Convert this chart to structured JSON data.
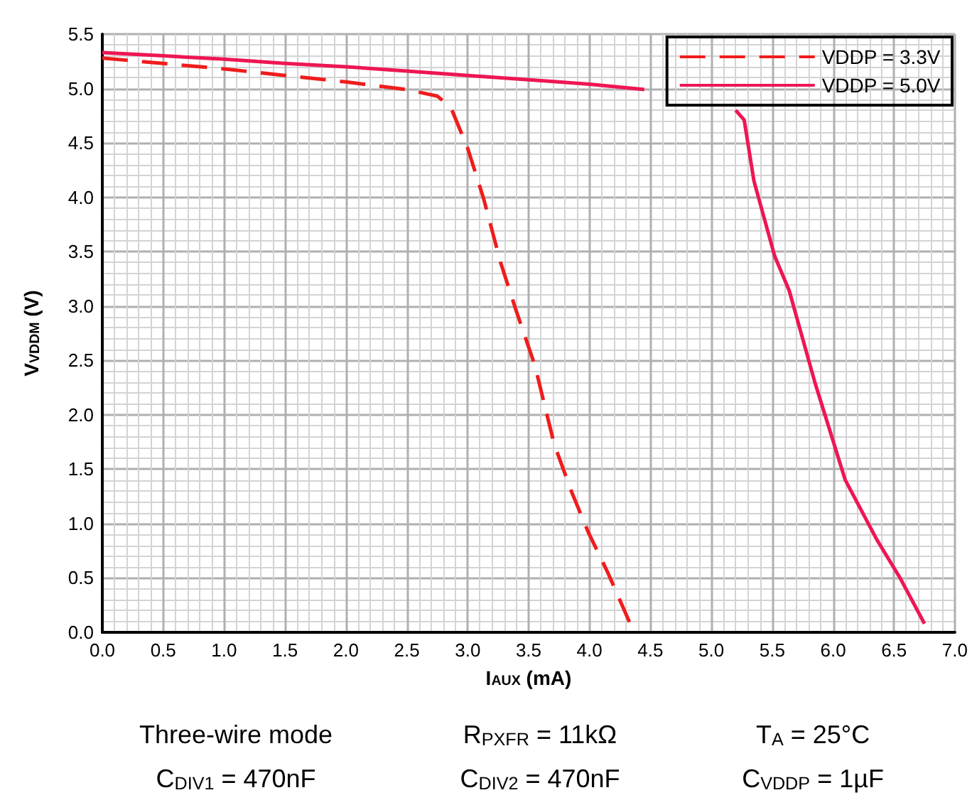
{
  "chart_data": {
    "type": "line",
    "xlabel": "I$_{AUX}$ (mA)",
    "ylabel": "V$_{VDDM}$ (V)",
    "xlim": [
      0,
      7
    ],
    "ylim": [
      0,
      5.5
    ],
    "xticks": [
      {
        "value": 0,
        "label": "0.0"
      },
      {
        "value": 0.5,
        "label": "0.5"
      },
      {
        "value": 1,
        "label": "1.0"
      },
      {
        "value": 1.5,
        "label": "1.5"
      },
      {
        "value": 2,
        "label": "2.0"
      },
      {
        "value": 2.5,
        "label": "2.5"
      },
      {
        "value": 3,
        "label": "3.0"
      },
      {
        "value": 3.5,
        "label": "3.5"
      },
      {
        "value": 4,
        "label": "4.0"
      },
      {
        "value": 4.5,
        "label": "4.5"
      },
      {
        "value": 5,
        "label": "5.0"
      },
      {
        "value": 5.5,
        "label": "5.5"
      },
      {
        "value": 6,
        "label": "6.0"
      },
      {
        "value": 6.5,
        "label": "6.5"
      },
      {
        "value": 7,
        "label": "7.0"
      }
    ],
    "yticks": [
      {
        "value": 0,
        "label": "0.0"
      },
      {
        "value": 0.5,
        "label": "0.5"
      },
      {
        "value": 1,
        "label": "1.0"
      },
      {
        "value": 1.5,
        "label": "1.5"
      },
      {
        "value": 2,
        "label": "2.0"
      },
      {
        "value": 2.5,
        "label": "2.5"
      },
      {
        "value": 3,
        "label": "3.0"
      },
      {
        "value": 3.5,
        "label": "3.5"
      },
      {
        "value": 4,
        "label": "4.0"
      },
      {
        "value": 4.5,
        "label": "4.5"
      },
      {
        "value": 5,
        "label": "5.0"
      },
      {
        "value": 5.5,
        "label": "5.5"
      }
    ],
    "grid": true,
    "legend": "top right",
    "marker": "none",
    "series": [
      {
        "name": "VDDP = 3.3V",
        "color": "#f01c1c",
        "line_style": "dashed",
        "x": [
          0,
          0.5,
          1,
          1.5,
          2,
          2.5,
          2.75,
          2.86,
          3.0,
          3.13,
          3.27,
          3.4,
          3.55,
          3.71,
          3.85,
          3.99,
          4.15,
          4.33,
          4.38
        ],
        "values": [
          5.28,
          5.23,
          5.18,
          5.12,
          5.06,
          4.99,
          4.93,
          4.83,
          4.45,
          3.99,
          3.4,
          2.95,
          2.46,
          1.73,
          1.3,
          0.92,
          0.55,
          0.09,
          0.0
        ]
      },
      {
        "name": "VDDP = 5.0V",
        "color": "#ee1654",
        "line_style": "solid",
        "x": [
          0,
          0.5,
          1,
          1.5,
          2,
          2.5,
          3,
          3.5,
          4,
          4.45,
          4.8,
          5.2,
          5.27,
          5.35,
          5.52,
          5.64,
          5.85,
          6.1,
          6.36,
          6.55,
          6.75
        ],
        "values": [
          5.33,
          5.3,
          5.27,
          5.23,
          5.2,
          5.16,
          5.12,
          5.08,
          5.04,
          4.99,
          null,
          4.8,
          4.71,
          4.15,
          3.46,
          3.14,
          2.3,
          1.4,
          0.85,
          0.5,
          0.08
        ]
      }
    ],
    "annotations": [
      "Three-wire mode",
      "R$_{PXFR}$ = 11kΩ",
      "T$_{A}$ = 25°C",
      "C$_{DIV1}$ = 470nF",
      "C$_{DIV2}$ = 470nF",
      "C$_{VDDP}$ = 1µF"
    ]
  }
}
